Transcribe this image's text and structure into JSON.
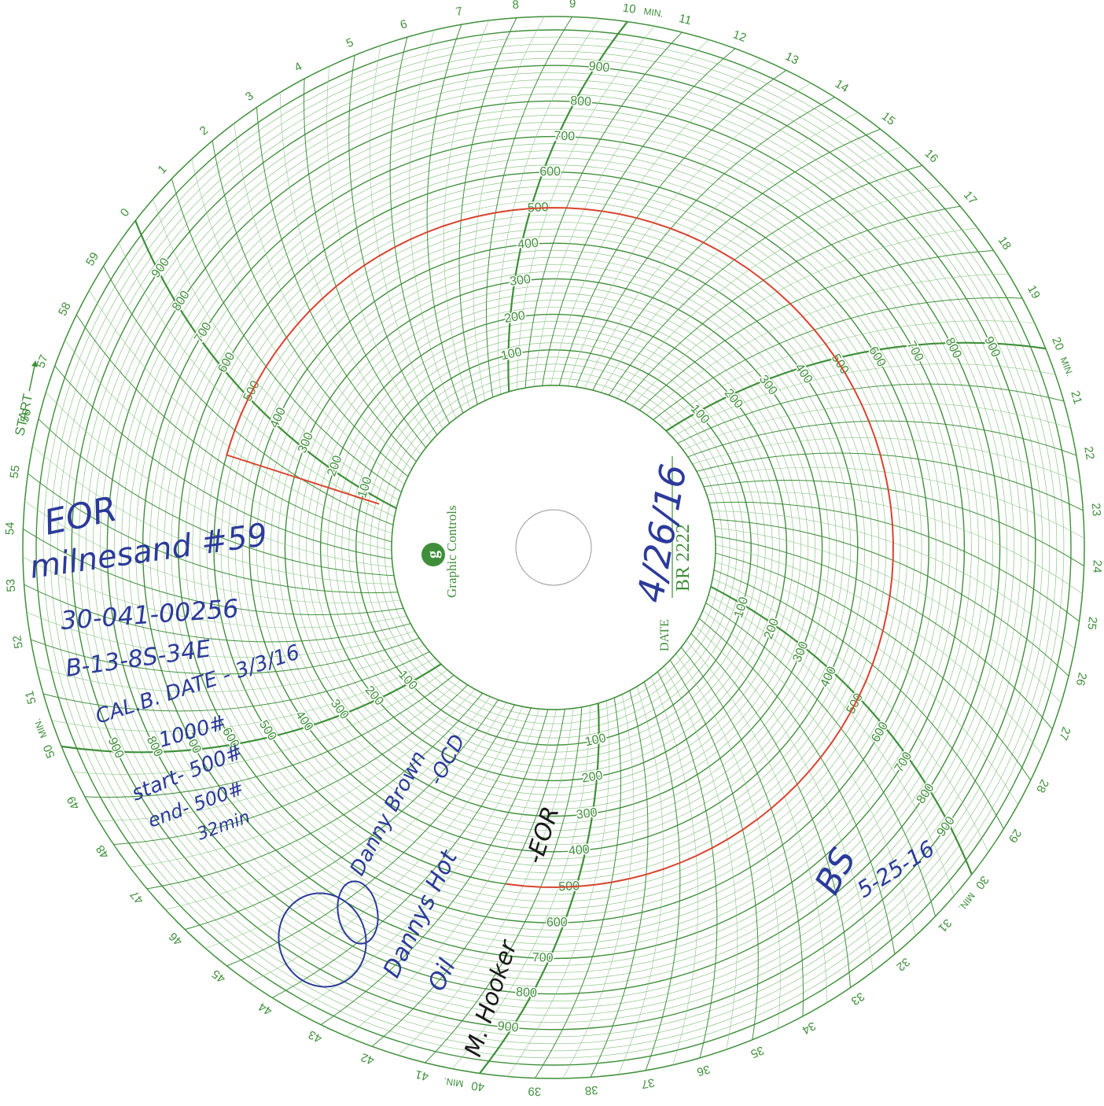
{
  "chart_data": {
    "type": "line",
    "title": "",
    "xlabel": "",
    "ylabel": "",
    "minute_ticks": [
      "0",
      "1",
      "2",
      "3",
      "4",
      "5",
      "6",
      "7",
      "8",
      "9",
      "10",
      "11",
      "12",
      "13",
      "14",
      "15",
      "16",
      "17",
      "18",
      "19",
      "20",
      "21",
      "22",
      "23",
      "24",
      "25",
      "26",
      "27",
      "28",
      "29",
      "30",
      "31",
      "32",
      "33",
      "34",
      "35",
      "36",
      "37",
      "38",
      "39",
      "40",
      "41",
      "42",
      "43",
      "44",
      "45",
      "46",
      "47",
      "48",
      "49",
      "50",
      "51",
      "52",
      "53",
      "54",
      "55",
      "56",
      "57",
      "58",
      "59"
    ],
    "min_label": "MIN.",
    "start_label": "START",
    "pressure_ticks": [
      "100",
      "200",
      "300",
      "400",
      "500",
      "600",
      "700",
      "800",
      "900"
    ],
    "ylim": [
      0,
      1000
    ],
    "series": [
      {
        "color": "#d8452f",
        "x": [
          0,
          0.3,
          1,
          3,
          5,
          8,
          10,
          12,
          15,
          18,
          20,
          22,
          25,
          27,
          28,
          29,
          30,
          32,
          34,
          36,
          38,
          40,
          41,
          42,
          43,
          44
        ],
        "values": [
          50,
          500,
          500,
          500,
          500,
          500,
          500,
          500,
          500,
          500,
          500,
          500,
          500,
          500,
          500,
          500,
          500,
          500,
          500,
          500,
          500,
          500,
          500,
          500,
          500,
          500
        ]
      }
    ]
  },
  "hub": {
    "brand": "Graphic Controls",
    "logo_letter": "g",
    "date_label": "DATE",
    "chart_code": "BR 2222",
    "date_written": "4/26/16"
  },
  "notes": {
    "line1": "EOR",
    "line2": "milnesand #59",
    "line3": "30-041-00256",
    "line4": "B-13-8S-34E",
    "line5": "CAL.B. DATE - 3/3/16",
    "line6": "1000#",
    "line7": "start- 500#",
    "line8": "end- 500#",
    "line9": "32min",
    "signature1": "Danny Brown",
    "signature1_role": "-OCD",
    "company_line1": "Dannys Hot",
    "company_line2": "Oil",
    "signature2": "M. Hooker",
    "signature2_role": "-EOR",
    "initials": "BS",
    "initials_date": "5-25-16"
  },
  "colors": {
    "grid": "#3f8f3a",
    "grid_light": "#8cc585",
    "trace": "#d8452f",
    "ink": "#2b3a9a"
  }
}
